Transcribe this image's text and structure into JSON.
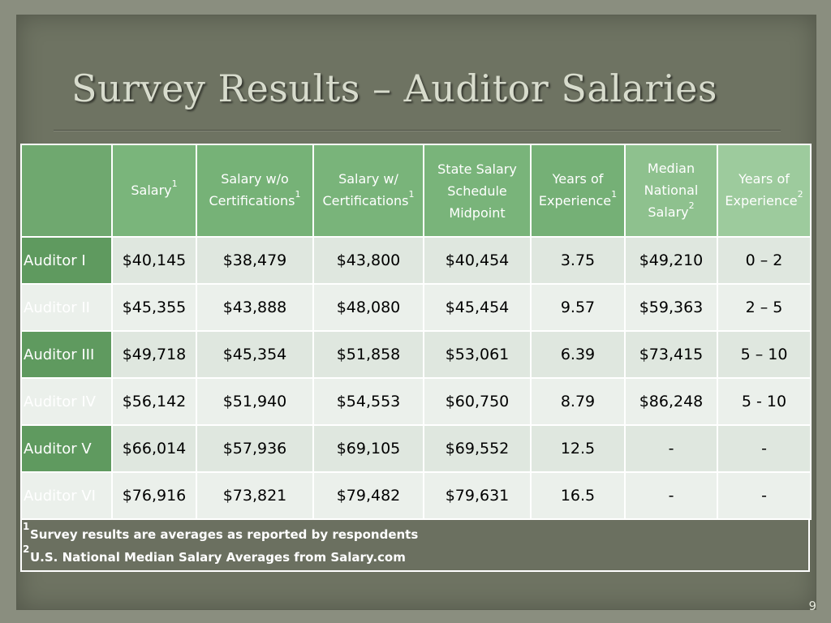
{
  "title": "Survey Results – Auditor Salaries",
  "page_number": "9",
  "table": {
    "headers": [
      {
        "label": "",
        "note": ""
      },
      {
        "label": "Salary",
        "note": "1"
      },
      {
        "label": "Salary w/o Certifications",
        "note": "1"
      },
      {
        "label": "Salary w/ Certifications",
        "note": "1"
      },
      {
        "label": "State Salary Schedule Midpoint",
        "note": ""
      },
      {
        "label": "Years of Experience",
        "note": "1"
      },
      {
        "label": "Median National Salary",
        "note": "2"
      },
      {
        "label": "Years of Experience",
        "note": "2"
      }
    ],
    "rows": [
      {
        "name": "Auditor I",
        "cells": [
          "$40,145",
          "$38,479",
          "$43,800",
          "$40,454",
          "3.75",
          "$49,210",
          "0 – 2"
        ]
      },
      {
        "name": "Auditor II",
        "cells": [
          "$45,355",
          "$43,888",
          "$48,080",
          "$45,454",
          "9.57",
          "$59,363",
          "2 – 5"
        ]
      },
      {
        "name": "Auditor III",
        "cells": [
          "$49,718",
          "$45,354",
          "$51,858",
          "$53,061",
          "6.39",
          "$73,415",
          "5 – 10"
        ]
      },
      {
        "name": "Auditor IV",
        "cells": [
          "$56,142",
          "$51,940",
          "$54,553",
          "$60,750",
          "8.79",
          "$86,248",
          "5 - 10"
        ]
      },
      {
        "name": "Auditor V",
        "cells": [
          "$66,014",
          "$57,936",
          "$69,105",
          "$69,552",
          "12.5",
          "-",
          "-"
        ]
      },
      {
        "name": "Auditor VI",
        "cells": [
          "$76,916",
          "$73,821",
          "$79,482",
          "$79,631",
          "16.5",
          "-",
          "-"
        ]
      }
    ]
  },
  "footnotes": [
    {
      "mark": "1",
      "text": "Survey results are averages as reported by respondents"
    },
    {
      "mark": "2",
      "text": "U.S. National Median Salary Averages from Salary.com"
    }
  ]
}
